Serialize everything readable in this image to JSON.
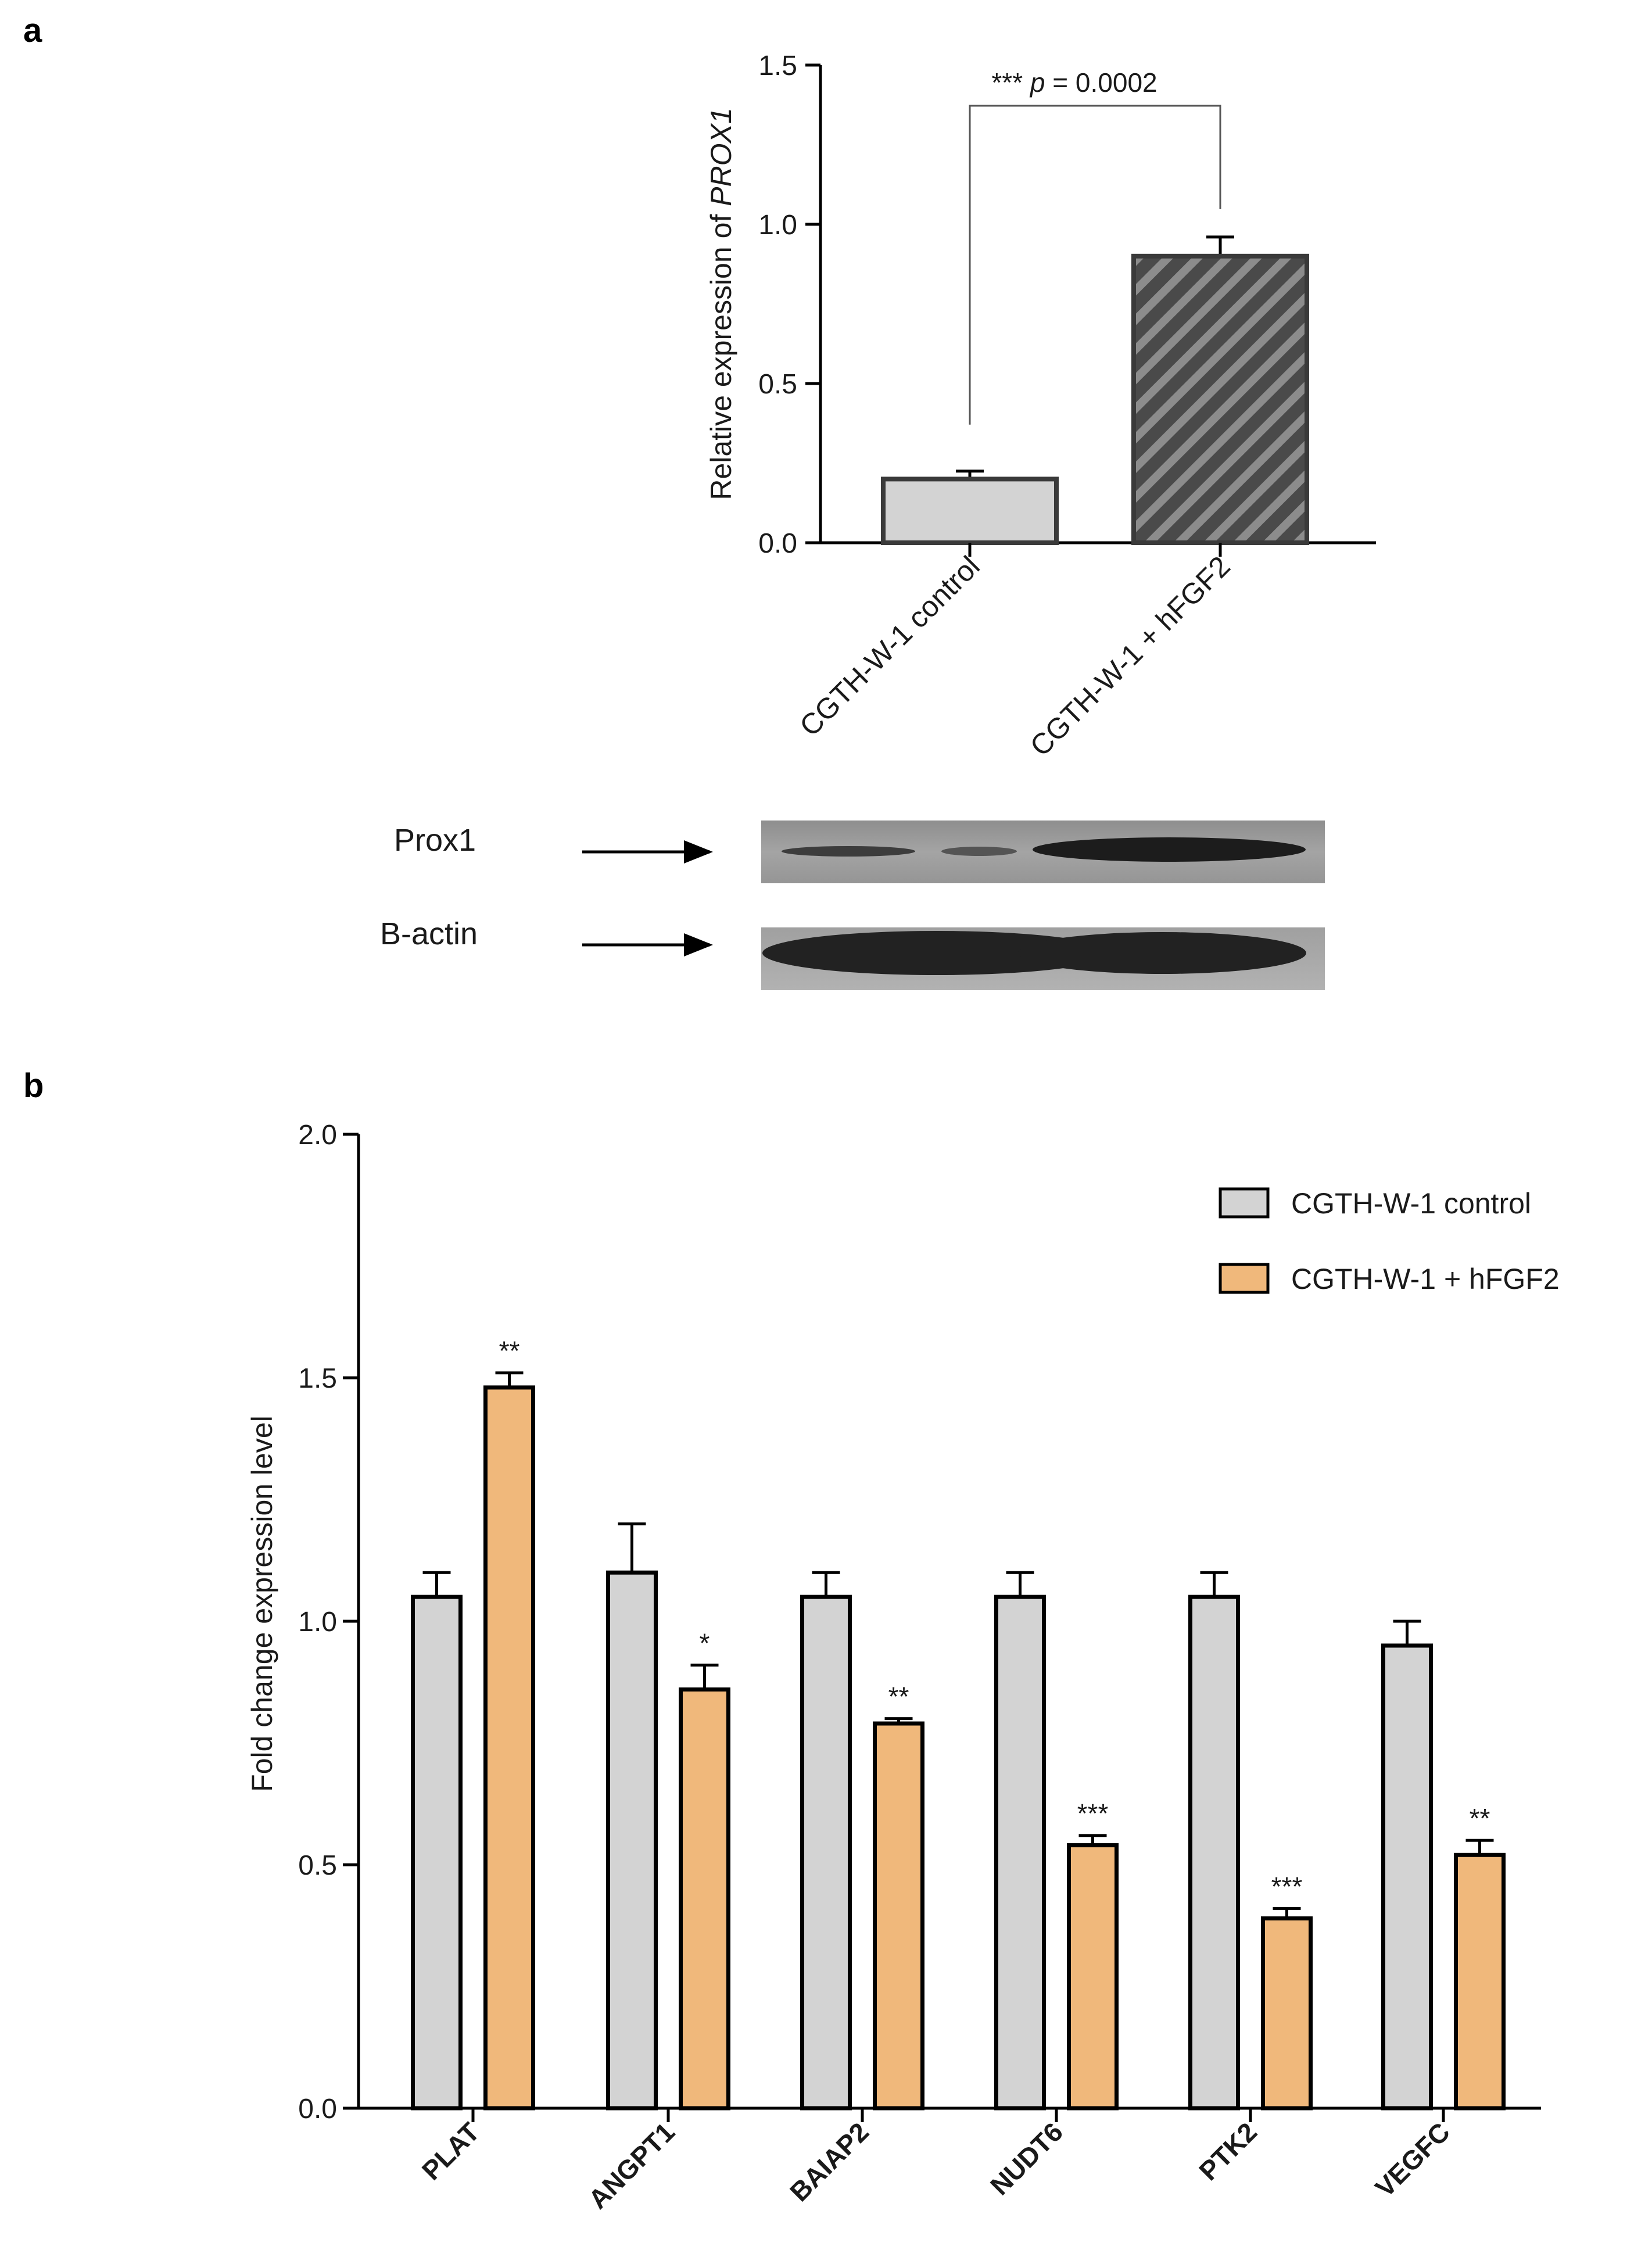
{
  "panels": {
    "a_letter": "a",
    "b_letter": "b"
  },
  "colors": {
    "control_fill": "#d3d3d3",
    "control_stroke": "#3a3a3a",
    "hfgf2_dark_fill": "#4a4a4a",
    "hfgf2_orange_fill": "#f0b87b",
    "axis": "#000000"
  },
  "chart_data": [
    {
      "id": "panel-a",
      "type": "bar",
      "ylabel_prefix": "Relative expression of ",
      "ylabel_gene": "PROX1",
      "ylim": [
        0,
        1.5
      ],
      "yticks": [
        "0.0",
        "0.5",
        "1.0",
        "1.5"
      ],
      "categories": [
        "CGTH-W-1 control",
        "CGTH-W-1 + hFGF2"
      ],
      "values": [
        0.2,
        0.9
      ],
      "errors": [
        0.025,
        0.06
      ],
      "significance": {
        "stars": "***",
        "p_label": "p",
        "p_rest": " = 0.0002"
      }
    },
    {
      "id": "panel-b",
      "type": "bar",
      "ylabel": "Fold change expression level",
      "ylim": [
        0,
        2.0
      ],
      "yticks": [
        "0.0",
        "0.5",
        "1.0",
        "1.5",
        "2.0"
      ],
      "categories": [
        "PLAT",
        "ANGPT1",
        "BAIAP2",
        "NUDT6",
        "PTK2",
        "VEGFC"
      ],
      "series": [
        {
          "name": "CGTH-W-1 control",
          "values": [
            1.05,
            1.1,
            1.05,
            1.05,
            1.05,
            0.95
          ],
          "errors": [
            0.05,
            0.1,
            0.05,
            0.05,
            0.05,
            0.05
          ]
        },
        {
          "name": "CGTH-W-1 + hFGF2",
          "values": [
            1.48,
            0.86,
            0.79,
            0.54,
            0.39,
            0.52
          ],
          "errors": [
            0.03,
            0.05,
            0.01,
            0.02,
            0.02,
            0.03
          ]
        }
      ],
      "significance": [
        "**",
        "*",
        "**",
        "***",
        "***",
        "**"
      ],
      "legend_position": "top-right"
    }
  ],
  "western_blot": {
    "bands": [
      {
        "label": "Prox1"
      },
      {
        "label": "B-actin"
      }
    ]
  }
}
